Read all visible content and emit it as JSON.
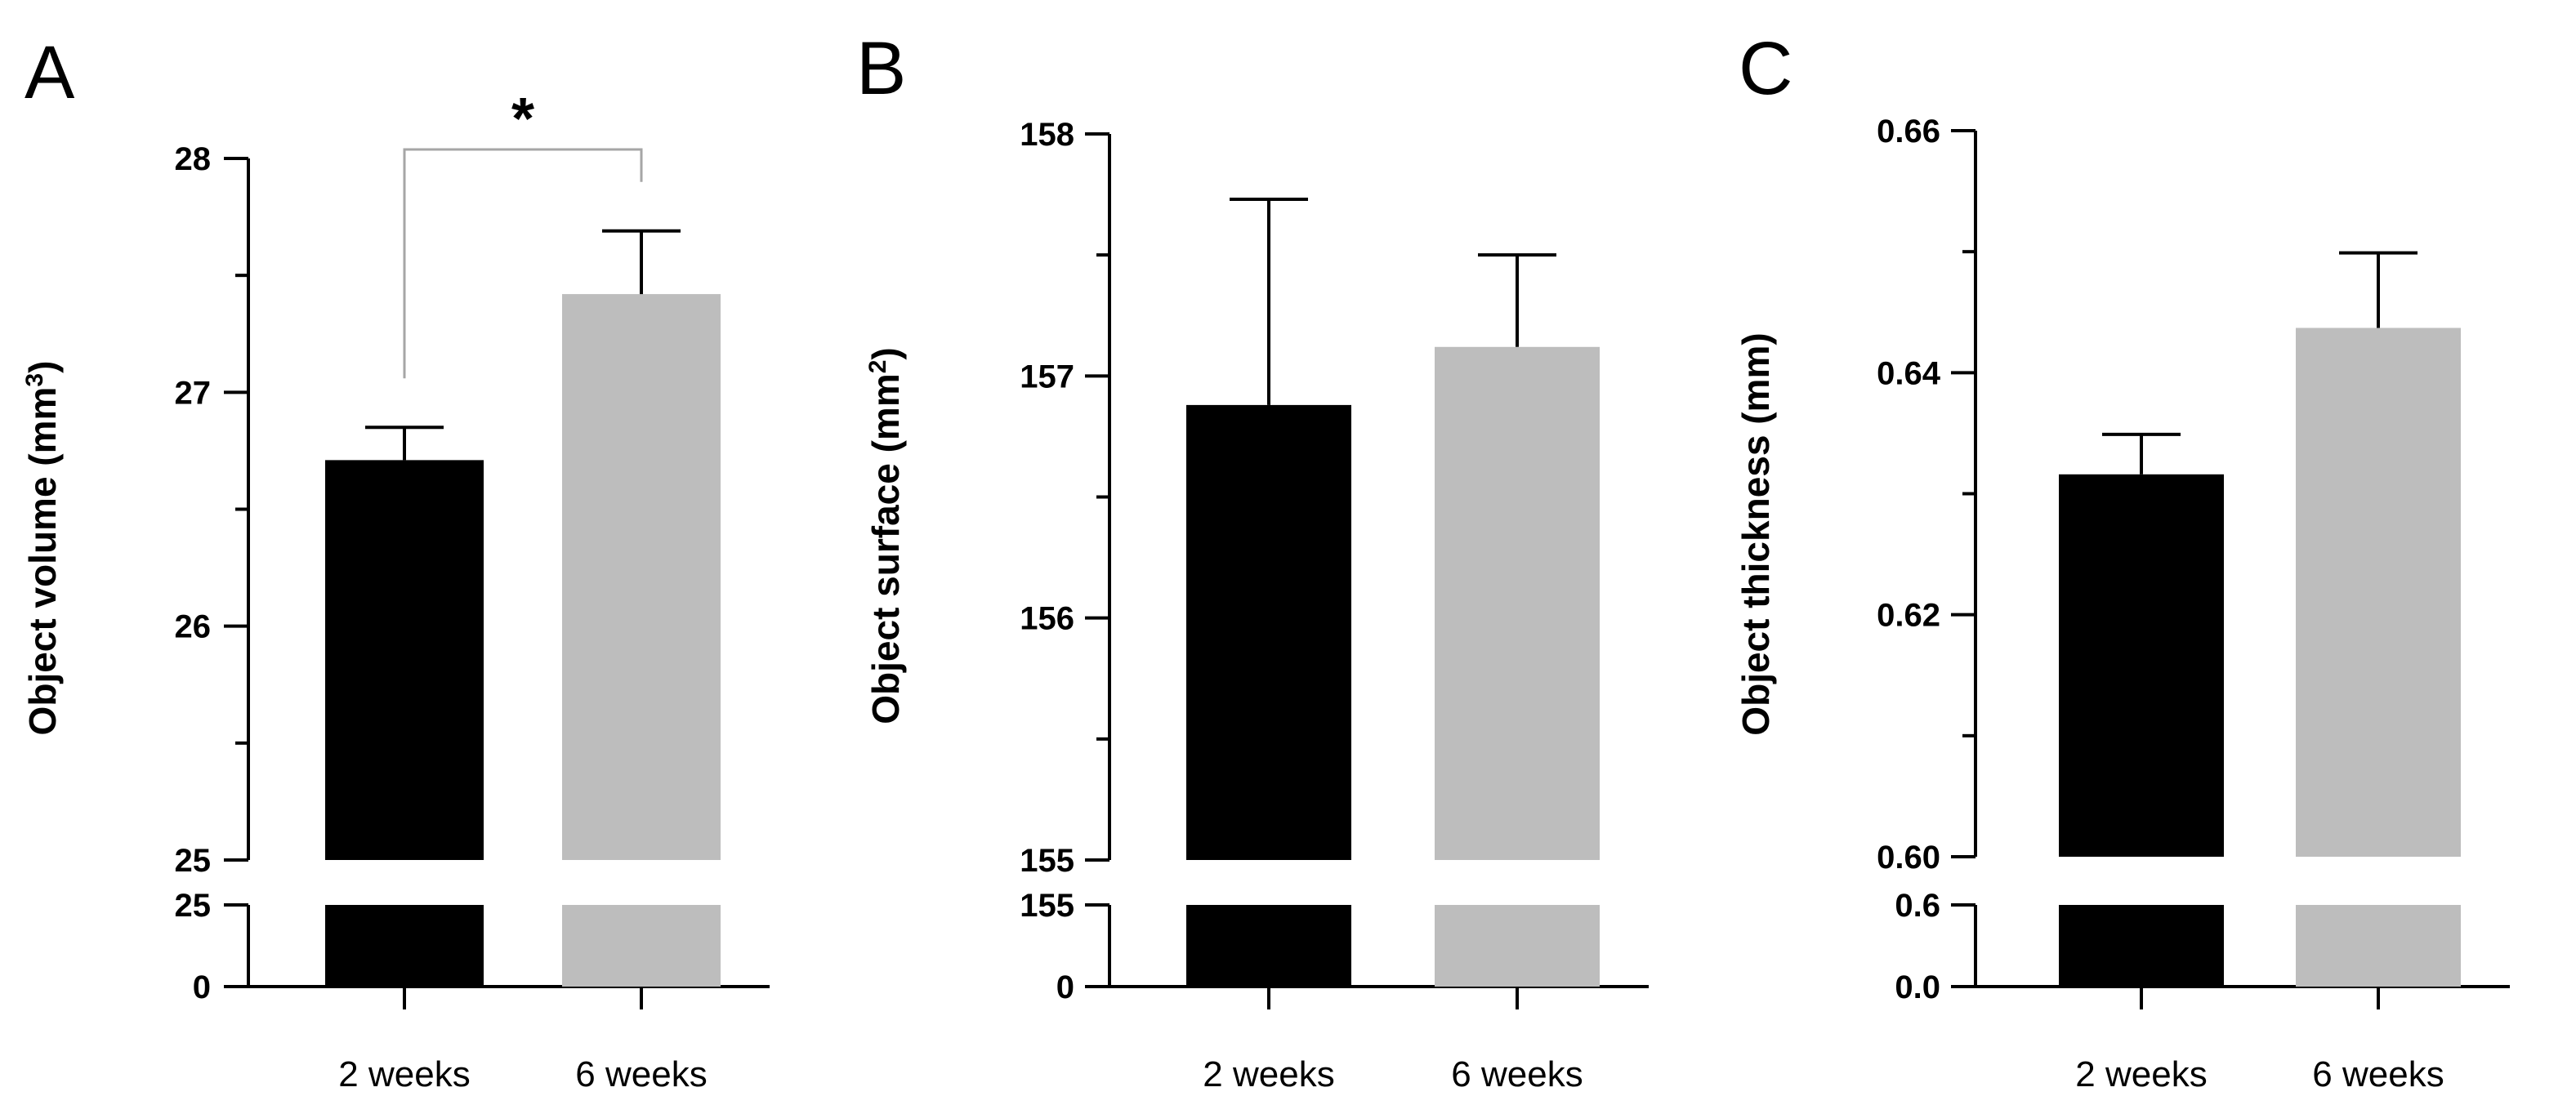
{
  "chart_data": [
    {
      "type": "bar",
      "panel": "A",
      "ylabel_main": "Object volume (mm",
      "ylabel_sup": "3",
      "ylabel_end": ")",
      "categories": [
        "2 weeks",
        "6 weeks"
      ],
      "series": [
        {
          "name": "Object volume",
          "values": [
            26.71,
            27.42
          ],
          "errors": [
            0.14,
            0.27
          ]
        }
      ],
      "bar_colors": [
        "#000000",
        "#bdbdbd"
      ],
      "ylim_top": [
        25,
        28
      ],
      "ylim_bottom": [
        0,
        25
      ],
      "ticks_top": [
        "25",
        "26",
        "27",
        "28"
      ],
      "tick_values_top": [
        25,
        26,
        27,
        28
      ],
      "ticks_bottom": [
        "0",
        "25"
      ],
      "tick_values_bottom": [
        0,
        25
      ],
      "significance": "*"
    },
    {
      "type": "bar",
      "panel": "B",
      "ylabel_main": "Object surface (mm",
      "ylabel_sup": "2",
      "ylabel_end": ")",
      "categories": [
        "2 weeks",
        "6 weeks"
      ],
      "series": [
        {
          "name": "Object surface",
          "values": [
            156.88,
            157.12
          ],
          "errors": [
            0.85,
            0.38
          ]
        }
      ],
      "bar_colors": [
        "#000000",
        "#bdbdbd"
      ],
      "ylim_top": [
        155,
        158
      ],
      "ylim_bottom": [
        0,
        155
      ],
      "ticks_top": [
        "155",
        "156",
        "157",
        "158"
      ],
      "tick_values_top": [
        155,
        156,
        157,
        158
      ],
      "ticks_bottom": [
        "0",
        "155"
      ],
      "tick_values_bottom": [
        0,
        155
      ],
      "significance": ""
    },
    {
      "type": "bar",
      "panel": "C",
      "ylabel_main": "Object thickness (mm)",
      "ylabel_sup": "",
      "ylabel_end": "",
      "categories": [
        "2 weeks",
        "6 weeks"
      ],
      "series": [
        {
          "name": "Object thickness",
          "values": [
            0.6316,
            0.6437
          ],
          "errors": [
            0.0033,
            0.0062
          ]
        }
      ],
      "bar_colors": [
        "#000000",
        "#bdbdbd"
      ],
      "ylim_top": [
        0.6,
        0.66
      ],
      "ylim_bottom": [
        0,
        0.6
      ],
      "ticks_top": [
        "0.60",
        "0.62",
        "0.64",
        "0.66"
      ],
      "tick_values_top": [
        0.6,
        0.62,
        0.64,
        0.66
      ],
      "ticks_bottom": [
        "0.0",
        "0.6"
      ],
      "tick_values_bottom": [
        0,
        0.6
      ],
      "significance": ""
    }
  ]
}
